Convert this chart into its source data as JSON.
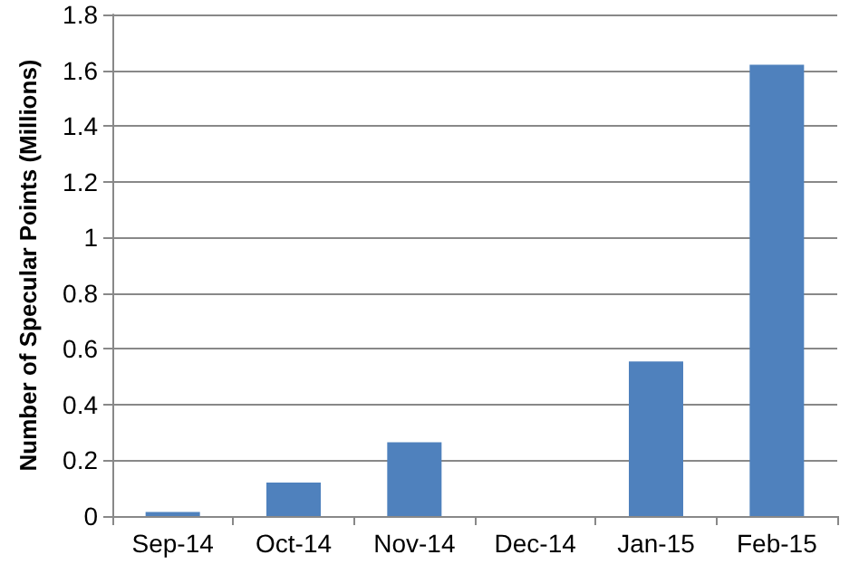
{
  "chart_data": {
    "type": "bar",
    "ylabel": "Number of Specular Points (Millions)",
    "categories": [
      "Sep-14",
      "Oct-14",
      "Nov-14",
      "Dec-14",
      "Jan-15",
      "Feb-15"
    ],
    "values": [
      0.015,
      0.12,
      0.265,
      0,
      0.555,
      1.62
    ],
    "color": "#4f81bd",
    "ylim": [
      0,
      1.8
    ],
    "yticks": [
      0,
      0.2,
      0.4,
      0.6,
      0.8,
      1,
      1.2,
      1.4,
      1.6,
      1.8
    ],
    "grid": "y"
  }
}
